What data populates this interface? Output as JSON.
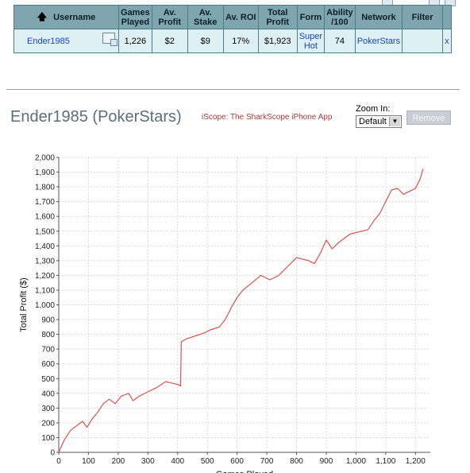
{
  "table": {
    "headers": [
      "Username",
      "Games Played",
      "Av. Profit",
      "Av. Stake",
      "Av. ROI",
      "Total Profit",
      "Form",
      "Ability /100",
      "Network",
      "Filter"
    ],
    "row": {
      "username": "Ender1985",
      "games_played": "1,226",
      "av_profit": "$2",
      "av_stake": "$9",
      "av_roi": "17%",
      "total_profit": "$1,923",
      "form": "Super Hot",
      "ability": "74",
      "network": "PokerStars",
      "remove": "x"
    }
  },
  "header": {
    "player_title": "Ender1985 (PokerStars)",
    "iscope_link": "iScope: The SharkScope iPhone App",
    "zoom_label": "Zoom In:",
    "zoom_value": "Default",
    "remove_button": "Remove"
  },
  "chart_data": {
    "type": "line",
    "xlabel": "Games Played",
    "ylabel": "Total Profit ($)",
    "xlim": [
      0,
      1250
    ],
    "ylim": [
      0,
      2000
    ],
    "x_ticks": [
      0,
      100,
      200,
      300,
      400,
      500,
      600,
      700,
      800,
      900,
      1000,
      1100,
      1200
    ],
    "y_ticks": [
      0,
      100,
      200,
      300,
      400,
      500,
      600,
      700,
      800,
      900,
      1000,
      1100,
      1200,
      1300,
      1400,
      1500,
      1600,
      1700,
      1800,
      1900,
      2000
    ],
    "grid": true,
    "line_color": "#e05050",
    "series": [
      {
        "points": [
          [
            0,
            0
          ],
          [
            20,
            90
          ],
          [
            40,
            150
          ],
          [
            60,
            180
          ],
          [
            80,
            210
          ],
          [
            95,
            170
          ],
          [
            110,
            220
          ],
          [
            130,
            270
          ],
          [
            150,
            330
          ],
          [
            170,
            360
          ],
          [
            190,
            330
          ],
          [
            210,
            380
          ],
          [
            235,
            400
          ],
          [
            250,
            350
          ],
          [
            270,
            380
          ],
          [
            300,
            410
          ],
          [
            330,
            440
          ],
          [
            360,
            480
          ],
          [
            380,
            470
          ],
          [
            400,
            460
          ],
          [
            410,
            450
          ],
          [
            412,
            750
          ],
          [
            430,
            770
          ],
          [
            460,
            790
          ],
          [
            490,
            810
          ],
          [
            510,
            830
          ],
          [
            540,
            850
          ],
          [
            560,
            900
          ],
          [
            580,
            980
          ],
          [
            600,
            1050
          ],
          [
            620,
            1100
          ],
          [
            650,
            1150
          ],
          [
            680,
            1200
          ],
          [
            710,
            1170
          ],
          [
            740,
            1200
          ],
          [
            760,
            1240
          ],
          [
            780,
            1280
          ],
          [
            800,
            1320
          ],
          [
            820,
            1310
          ],
          [
            840,
            1300
          ],
          [
            860,
            1280
          ],
          [
            880,
            1350
          ],
          [
            900,
            1440
          ],
          [
            920,
            1380
          ],
          [
            940,
            1420
          ],
          [
            960,
            1450
          ],
          [
            980,
            1480
          ],
          [
            1000,
            1490
          ],
          [
            1020,
            1500
          ],
          [
            1040,
            1510
          ],
          [
            1060,
            1570
          ],
          [
            1080,
            1620
          ],
          [
            1100,
            1700
          ],
          [
            1120,
            1780
          ],
          [
            1140,
            1790
          ],
          [
            1160,
            1750
          ],
          [
            1180,
            1770
          ],
          [
            1200,
            1790
          ],
          [
            1215,
            1850
          ],
          [
            1226,
            1923
          ]
        ]
      }
    ]
  }
}
